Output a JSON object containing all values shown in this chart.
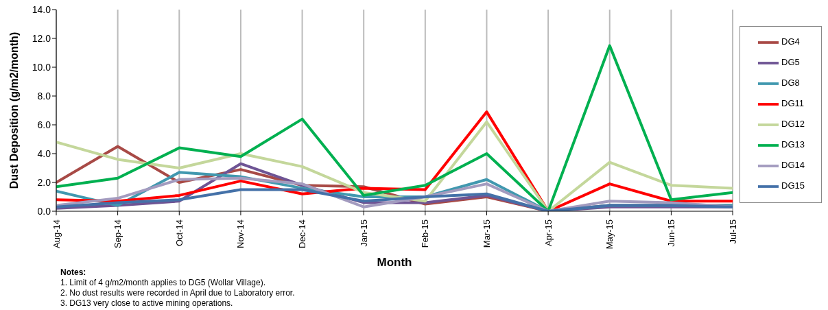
{
  "chart_data": {
    "type": "line",
    "xlabel": "Month",
    "ylabel": "Dust Deposition (g/m2/month)",
    "categories": [
      "Aug-14",
      "Sep-14",
      "Oct-14",
      "Nov-14",
      "Dec-14",
      "Jan-15",
      "Feb-15",
      "Mar-15",
      "Apr-15",
      "May-15",
      "Jun-15",
      "Jul-15"
    ],
    "series": [
      {
        "name": "DG4",
        "color": "#a84a46",
        "values": [
          2.0,
          4.5,
          2.0,
          2.9,
          1.8,
          1.7,
          0.5,
          1.0,
          0,
          0.4,
          0.4,
          0.4
        ]
      },
      {
        "name": "DG5",
        "color": "#6e5494",
        "values": [
          0.2,
          0.4,
          0.7,
          3.3,
          1.8,
          0.6,
          0.6,
          1.1,
          0,
          0.3,
          0.3,
          0.3
        ]
      },
      {
        "name": "DG8",
        "color": "#4198af",
        "values": [
          1.4,
          0.4,
          2.7,
          2.4,
          1.6,
          1.0,
          1.0,
          2.2,
          0,
          0.4,
          0.4,
          0.4
        ]
      },
      {
        "name": "DG11",
        "color": "#ff0000",
        "values": [
          0.8,
          0.7,
          1.1,
          2.1,
          1.2,
          1.6,
          1.5,
          6.9,
          0,
          1.9,
          0.7,
          0.7
        ]
      },
      {
        "name": "DG12",
        "color": "#c4d79b",
        "values": [
          4.8,
          3.6,
          3.0,
          4.0,
          3.1,
          1.3,
          0.7,
          6.2,
          0,
          3.4,
          1.8,
          1.6
        ]
      },
      {
        "name": "DG13",
        "color": "#00b050",
        "values": [
          1.7,
          2.3,
          4.4,
          3.8,
          6.4,
          1.1,
          1.8,
          4.0,
          0,
          11.5,
          0.8,
          1.3
        ]
      },
      {
        "name": "DG14",
        "color": "#a39bbf",
        "values": [
          0.4,
          0.9,
          2.2,
          2.3,
          1.9,
          0.3,
          1.0,
          1.9,
          0,
          0.7,
          0.6,
          0.3
        ]
      },
      {
        "name": "DG15",
        "color": "#4471a8",
        "values": [
          0.3,
          0.6,
          0.8,
          1.5,
          1.5,
          0.7,
          1.0,
          1.2,
          0,
          0.4,
          0.4,
          0.3
        ]
      }
    ],
    "ylim": [
      0,
      14
    ],
    "yticks": [
      {
        "value": 0,
        "label": "0.0"
      },
      {
        "value": 2,
        "label": "2.0"
      },
      {
        "value": 4,
        "label": "4.0"
      },
      {
        "value": 6,
        "label": "6.0"
      },
      {
        "value": 8,
        "label": "8.0"
      },
      {
        "value": 10,
        "label": "10.0"
      },
      {
        "value": 12,
        "label": "12.0"
      },
      {
        "value": 14,
        "label": "14.0"
      }
    ],
    "grid": "x",
    "legend": "right",
    "marker": "none",
    "line_style": "solid",
    "annotations": [
      "Notes:",
      "1.  Limit of 4 g/m2/month applies to DG5 (Wollar Village).",
      "2.  No dust results were recorded in April due to Laboratory error.",
      "3.  DG13 very close to active mining operations."
    ]
  }
}
